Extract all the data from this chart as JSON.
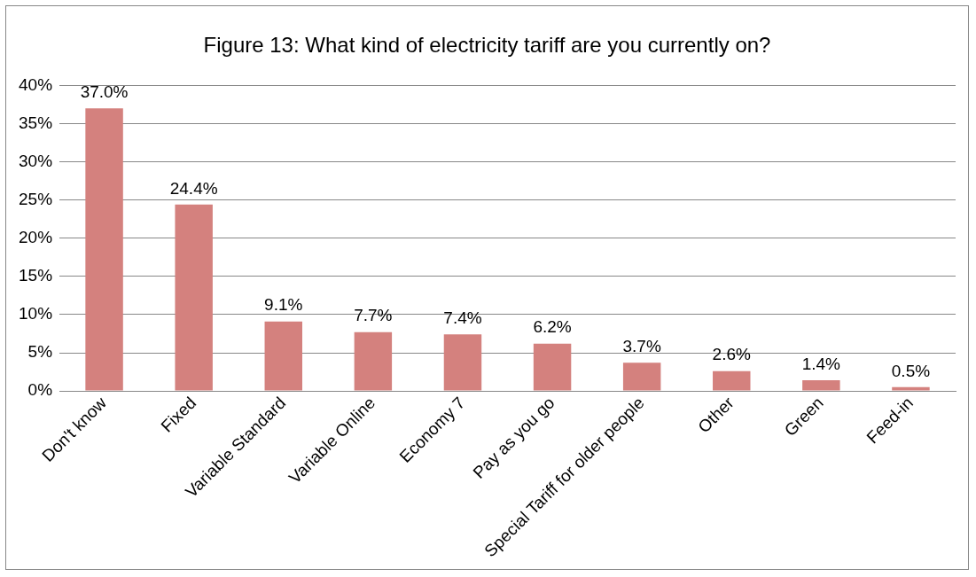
{
  "chart_data": {
    "type": "bar",
    "title": "Figure 13: What kind of electricity tariff are you currently on?",
    "categories": [
      "Don't know",
      "Fixed",
      "Variable Standard",
      "Variable Online",
      "Economy 7",
      "Pay as you go",
      "Special Tariff for older people",
      "Other",
      "Green",
      "Feed-in"
    ],
    "values": [
      37.0,
      24.4,
      9.1,
      7.7,
      7.4,
      6.2,
      3.7,
      2.6,
      1.4,
      0.5
    ],
    "value_labels": [
      "37.0%",
      "24.4%",
      "9.1%",
      "7.7%",
      "7.4%",
      "6.2%",
      "3.7%",
      "2.6%",
      "1.4%",
      "0.5%"
    ],
    "color": "#d4817e",
    "ylim": [
      0,
      40
    ],
    "yticks": [
      {
        "value": 0,
        "label": "0%"
      },
      {
        "value": 5,
        "label": "5%"
      },
      {
        "value": 10,
        "label": "10%"
      },
      {
        "value": 15,
        "label": "15%"
      },
      {
        "value": 20,
        "label": "20%"
      },
      {
        "value": 25,
        "label": "25%"
      },
      {
        "value": 30,
        "label": "30%"
      },
      {
        "value": 35,
        "label": "35%"
      },
      {
        "value": 40,
        "label": "40%"
      }
    ],
    "grid": "y"
  }
}
